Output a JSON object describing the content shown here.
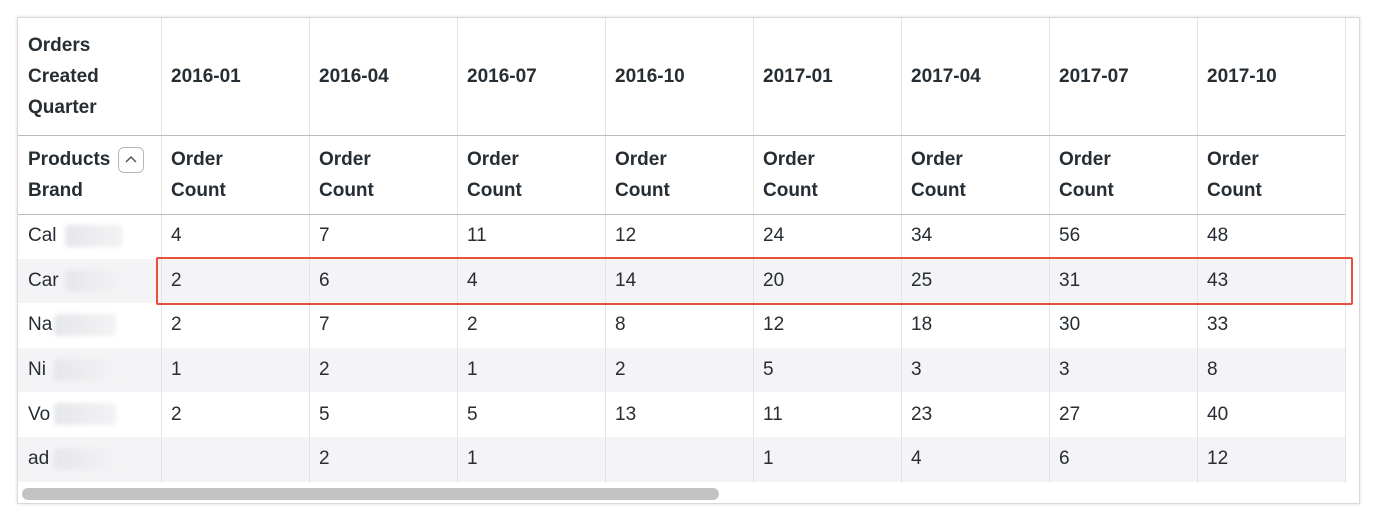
{
  "table": {
    "pivot_header": "Orders Created Quarter",
    "columns": [
      "2016-01",
      "2016-04",
      "2016-07",
      "2016-10",
      "2017-01",
      "2017-04",
      "2017-07",
      "2017-10"
    ],
    "row_header": "Products Brand",
    "measures": [
      "Order Count",
      "Order Count",
      "Order Count",
      "Order Count",
      "Order Count",
      "Order Count",
      "Order Count",
      "Order Count"
    ],
    "rows": [
      {
        "brand": "Cal",
        "values": [
          4,
          7,
          11,
          12,
          24,
          34,
          56,
          48
        ]
      },
      {
        "brand": "Car",
        "values": [
          2,
          6,
          4,
          14,
          20,
          25,
          31,
          43
        ]
      },
      {
        "brand": "Na",
        "values": [
          2,
          7,
          2,
          8,
          12,
          18,
          30,
          33
        ]
      },
      {
        "brand": "Ni",
        "values": [
          1,
          2,
          1,
          2,
          5,
          3,
          3,
          8
        ]
      },
      {
        "brand": "Vo",
        "values": [
          2,
          5,
          5,
          13,
          11,
          23,
          27,
          40
        ]
      },
      {
        "brand": "ad",
        "values": [
          null,
          2,
          1,
          null,
          1,
          4,
          6,
          12
        ]
      }
    ],
    "highlighted_row": 1
  }
}
